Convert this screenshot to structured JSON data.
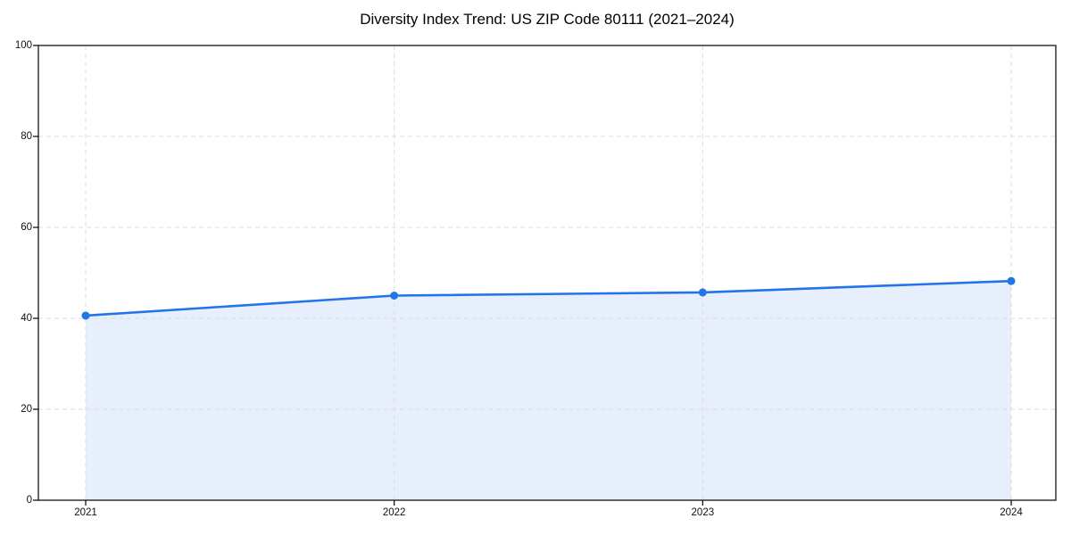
{
  "chart_data": {
    "type": "line",
    "subtype": "area-filled-line-with-markers",
    "title": "Diversity Index Trend: US ZIP Code 80111 (2021–2024)",
    "categories": [
      "2021",
      "2022",
      "2023",
      "2024"
    ],
    "series": [
      {
        "name": "Diversity Index",
        "values": [
          40.6,
          45.0,
          45.7,
          48.2
        ]
      }
    ],
    "xlabel": "",
    "ylabel": "",
    "ylim": [
      0,
      100
    ],
    "yticks": [
      0,
      20,
      40,
      60,
      80,
      100
    ],
    "grid": {
      "visible": true,
      "style": "dashed",
      "axes": "both"
    },
    "legend": "none",
    "colors": {
      "line": "#2274e8",
      "marker": "#2274e8",
      "area_fill": "#e7eefc",
      "grid": "#dcdcdc",
      "axis_spine": "#000000",
      "tick_text": "#111111",
      "title_text": "#000000",
      "background": "#ffffff"
    }
  }
}
